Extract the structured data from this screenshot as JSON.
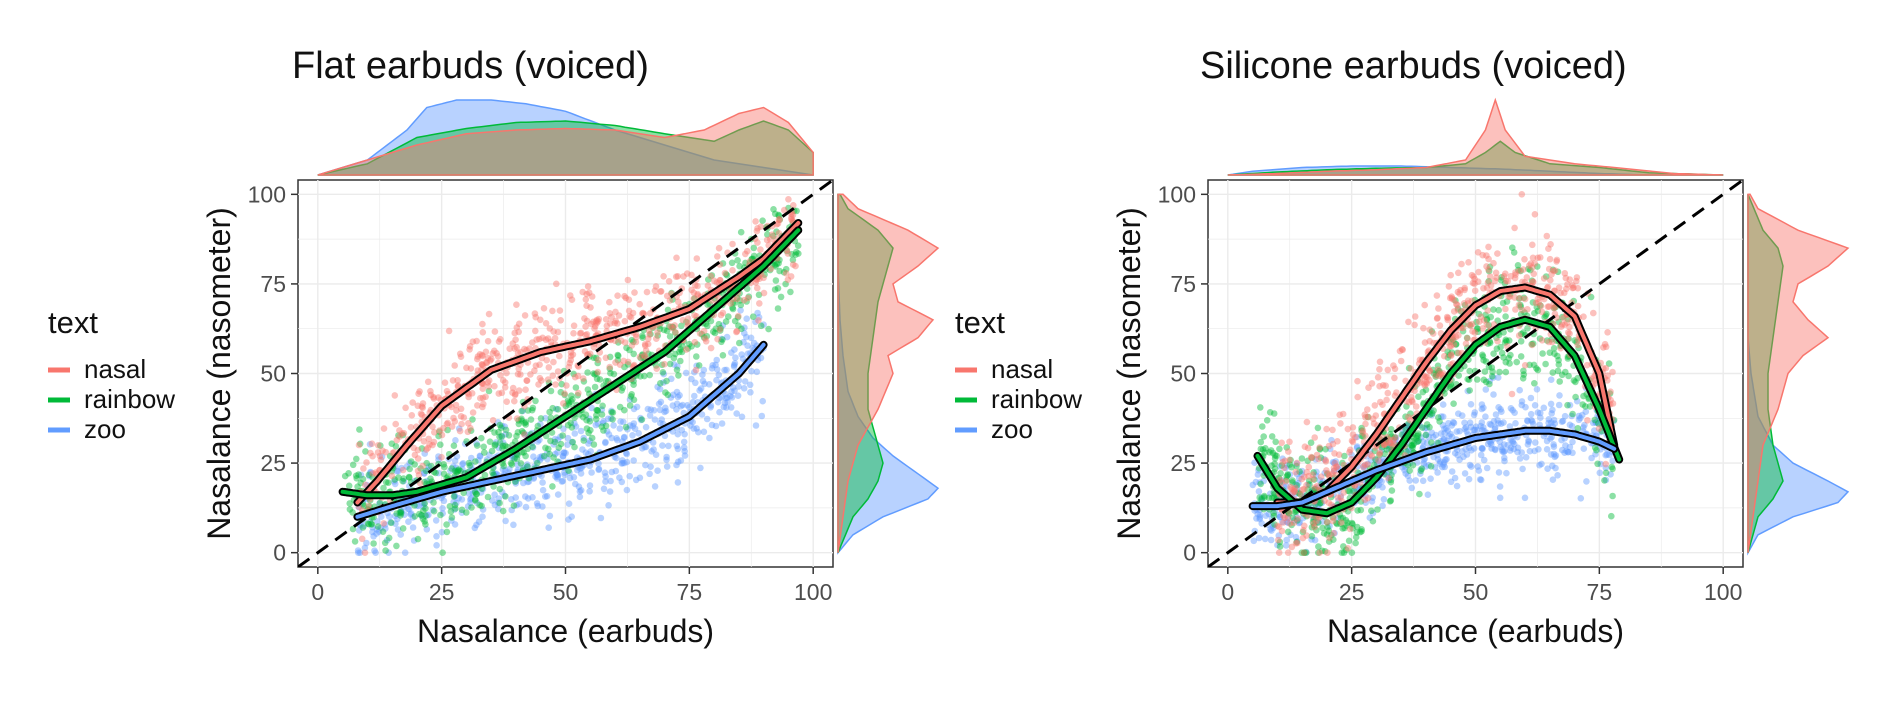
{
  "chart_data": [
    {
      "type": "scatter",
      "title": "Flat earbuds (voiced)",
      "xlabel": "Nasalance (earbuds)",
      "ylabel": "Nasalance (nasometer)",
      "xlim": [
        -4,
        104
      ],
      "ylim": [
        -4,
        104
      ],
      "xticks": [
        0,
        25,
        50,
        75,
        100
      ],
      "yticks": [
        0,
        25,
        50,
        75,
        100
      ],
      "grid": true,
      "identity_line": true,
      "legend": {
        "title": "text",
        "position": "left",
        "entries": [
          {
            "label": "nasal",
            "color": "#F8766D"
          },
          {
            "label": "rainbow",
            "color": "#00BA38"
          },
          {
            "label": "zoo",
            "color": "#619CFF"
          }
        ]
      },
      "series": [
        {
          "name": "nasal",
          "color": "#F8766D",
          "cloud": {
            "xmin": 8,
            "xmax": 97,
            "spread": 7
          },
          "trend": [
            [
              8,
              14
            ],
            [
              12,
              20
            ],
            [
              18,
              30
            ],
            [
              25,
              41
            ],
            [
              35,
              51
            ],
            [
              45,
              56
            ],
            [
              55,
              59
            ],
            [
              65,
              63
            ],
            [
              75,
              68
            ],
            [
              85,
              77
            ],
            [
              90,
              82
            ],
            [
              97,
              92
            ]
          ],
          "marginal_x": [
            [
              0,
              0
            ],
            [
              10,
              0.2
            ],
            [
              20,
              0.4
            ],
            [
              30,
              0.55
            ],
            [
              40,
              0.6
            ],
            [
              50,
              0.62
            ],
            [
              60,
              0.6
            ],
            [
              70,
              0.5
            ],
            [
              78,
              0.6
            ],
            [
              85,
              0.82
            ],
            [
              90,
              0.9
            ],
            [
              95,
              0.7
            ],
            [
              100,
              0.3
            ]
          ],
          "marginal_y": [
            [
              0,
              0
            ],
            [
              10,
              0.05
            ],
            [
              20,
              0.1
            ],
            [
              30,
              0.2
            ],
            [
              40,
              0.4
            ],
            [
              50,
              0.55
            ],
            [
              55,
              0.5
            ],
            [
              60,
              0.8
            ],
            [
              65,
              0.95
            ],
            [
              70,
              0.6
            ],
            [
              75,
              0.55
            ],
            [
              80,
              0.8
            ],
            [
              85,
              1.0
            ],
            [
              90,
              0.7
            ],
            [
              96,
              0.2
            ],
            [
              100,
              0.05
            ]
          ]
        },
        {
          "name": "rainbow",
          "color": "#00BA38",
          "cloud": {
            "xmin": 5,
            "xmax": 97,
            "spread": 7
          },
          "trend": [
            [
              5,
              17
            ],
            [
              10,
              16
            ],
            [
              15,
              16
            ],
            [
              20,
              17
            ],
            [
              30,
              21
            ],
            [
              40,
              29
            ],
            [
              50,
              38
            ],
            [
              60,
              47
            ],
            [
              70,
              56
            ],
            [
              80,
              68
            ],
            [
              90,
              80
            ],
            [
              97,
              90
            ]
          ],
          "marginal_x": [
            [
              0,
              0
            ],
            [
              10,
              0.15
            ],
            [
              20,
              0.5
            ],
            [
              30,
              0.62
            ],
            [
              40,
              0.7
            ],
            [
              50,
              0.72
            ],
            [
              60,
              0.66
            ],
            [
              70,
              0.55
            ],
            [
              80,
              0.45
            ],
            [
              85,
              0.6
            ],
            [
              90,
              0.72
            ],
            [
              95,
              0.6
            ],
            [
              100,
              0.3
            ]
          ],
          "marginal_y": [
            [
              0,
              0
            ],
            [
              10,
              0.15
            ],
            [
              15,
              0.3
            ],
            [
              20,
              0.4
            ],
            [
              25,
              0.45
            ],
            [
              30,
              0.4
            ],
            [
              40,
              0.3
            ],
            [
              50,
              0.3
            ],
            [
              60,
              0.35
            ],
            [
              70,
              0.4
            ],
            [
              80,
              0.5
            ],
            [
              85,
              0.55
            ],
            [
              90,
              0.4
            ],
            [
              96,
              0.1
            ],
            [
              100,
              0.02
            ]
          ]
        },
        {
          "name": "zoo",
          "color": "#619CFF",
          "cloud": {
            "xmin": 8,
            "xmax": 90,
            "spread": 7
          },
          "trend": [
            [
              8,
              10
            ],
            [
              15,
              13
            ],
            [
              25,
              17
            ],
            [
              35,
              20
            ],
            [
              45,
              23
            ],
            [
              55,
              26
            ],
            [
              65,
              31
            ],
            [
              75,
              38
            ],
            [
              85,
              50
            ],
            [
              90,
              58
            ]
          ],
          "marginal_x": [
            [
              0,
              0
            ],
            [
              10,
              0.2
            ],
            [
              18,
              0.6
            ],
            [
              22,
              0.9
            ],
            [
              28,
              1.0
            ],
            [
              35,
              1.0
            ],
            [
              42,
              0.95
            ],
            [
              50,
              0.85
            ],
            [
              60,
              0.6
            ],
            [
              70,
              0.4
            ],
            [
              80,
              0.2
            ],
            [
              90,
              0.1
            ],
            [
              100,
              0
            ]
          ],
          "marginal_y": [
            [
              0,
              0
            ],
            [
              5,
              0.15
            ],
            [
              10,
              0.45
            ],
            [
              15,
              0.9
            ],
            [
              18,
              1.0
            ],
            [
              22,
              0.8
            ],
            [
              27,
              0.55
            ],
            [
              32,
              0.35
            ],
            [
              38,
              0.2
            ],
            [
              45,
              0.1
            ],
            [
              55,
              0.05
            ],
            [
              65,
              0.02
            ],
            [
              80,
              0
            ]
          ]
        }
      ]
    },
    {
      "type": "scatter",
      "title": "Silicone earbuds (voiced)",
      "xlabel": "Nasalance (earbuds)",
      "ylabel": "Nasalance (nasometer)",
      "xlim": [
        -4,
        104
      ],
      "ylim": [
        -4,
        104
      ],
      "xticks": [
        0,
        25,
        50,
        75,
        100
      ],
      "yticks": [
        0,
        25,
        50,
        75,
        100
      ],
      "grid": true,
      "identity_line": true,
      "legend": {
        "title": "text",
        "position": "left",
        "entries": [
          {
            "label": "nasal",
            "color": "#F8766D"
          },
          {
            "label": "rainbow",
            "color": "#00BA38"
          },
          {
            "label": "zoo",
            "color": "#619CFF"
          }
        ]
      },
      "series": [
        {
          "name": "nasal",
          "color": "#F8766D",
          "cloud": {
            "xmin": 10,
            "xmax": 78,
            "spread": 8
          },
          "trend": [
            [
              10,
              14
            ],
            [
              15,
              14
            ],
            [
              20,
              17
            ],
            [
              25,
              24
            ],
            [
              30,
              33
            ],
            [
              35,
              43
            ],
            [
              40,
              53
            ],
            [
              45,
              62
            ],
            [
              50,
              69
            ],
            [
              55,
              73
            ],
            [
              60,
              74
            ],
            [
              65,
              72
            ],
            [
              70,
              66
            ],
            [
              75,
              50
            ],
            [
              78,
              30
            ]
          ],
          "marginal_x": [
            [
              0,
              0
            ],
            [
              10,
              0.02
            ],
            [
              20,
              0.05
            ],
            [
              30,
              0.07
            ],
            [
              40,
              0.1
            ],
            [
              48,
              0.2
            ],
            [
              52,
              0.6
            ],
            [
              54,
              1.0
            ],
            [
              56,
              0.6
            ],
            [
              60,
              0.25
            ],
            [
              70,
              0.15
            ],
            [
              78,
              0.1
            ],
            [
              90,
              0.02
            ],
            [
              100,
              0
            ]
          ],
          "marginal_y": [
            [
              0,
              0
            ],
            [
              10,
              0.05
            ],
            [
              20,
              0.1
            ],
            [
              30,
              0.15
            ],
            [
              40,
              0.3
            ],
            [
              50,
              0.4
            ],
            [
              55,
              0.55
            ],
            [
              60,
              0.8
            ],
            [
              65,
              0.6
            ],
            [
              70,
              0.45
            ],
            [
              75,
              0.5
            ],
            [
              80,
              0.8
            ],
            [
              85,
              1.0
            ],
            [
              90,
              0.5
            ],
            [
              96,
              0.1
            ],
            [
              100,
              0.02
            ]
          ]
        },
        {
          "name": "rainbow",
          "color": "#00BA38",
          "cloud": {
            "xmin": 6,
            "xmax": 78,
            "spread": 8
          },
          "trend": [
            [
              6,
              27
            ],
            [
              10,
              18
            ],
            [
              15,
              12
            ],
            [
              20,
              11
            ],
            [
              25,
              14
            ],
            [
              30,
              21
            ],
            [
              35,
              30
            ],
            [
              40,
              40
            ],
            [
              45,
              50
            ],
            [
              50,
              58
            ],
            [
              55,
              63
            ],
            [
              60,
              65
            ],
            [
              65,
              63
            ],
            [
              70,
              55
            ],
            [
              75,
              40
            ],
            [
              79,
              26
            ]
          ],
          "marginal_x": [
            [
              0,
              0
            ],
            [
              10,
              0.04
            ],
            [
              20,
              0.07
            ],
            [
              30,
              0.09
            ],
            [
              40,
              0.1
            ],
            [
              48,
              0.15
            ],
            [
              52,
              0.3
            ],
            [
              55,
              0.45
            ],
            [
              58,
              0.3
            ],
            [
              65,
              0.15
            ],
            [
              75,
              0.1
            ],
            [
              85,
              0.03
            ],
            [
              100,
              0
            ]
          ],
          "marginal_y": [
            [
              0,
              0
            ],
            [
              10,
              0.1
            ],
            [
              15,
              0.25
            ],
            [
              20,
              0.35
            ],
            [
              25,
              0.3
            ],
            [
              30,
              0.25
            ],
            [
              40,
              0.2
            ],
            [
              50,
              0.2
            ],
            [
              60,
              0.25
            ],
            [
              70,
              0.3
            ],
            [
              80,
              0.35
            ],
            [
              85,
              0.3
            ],
            [
              90,
              0.15
            ],
            [
              100,
              0
            ]
          ]
        },
        {
          "name": "zoo",
          "color": "#619CFF",
          "cloud": {
            "xmin": 5,
            "xmax": 78,
            "spread": 6
          },
          "trend": [
            [
              5,
              13
            ],
            [
              10,
              13
            ],
            [
              15,
              14
            ],
            [
              20,
              17
            ],
            [
              25,
              20
            ],
            [
              30,
              23
            ],
            [
              40,
              28
            ],
            [
              50,
              32
            ],
            [
              60,
              34
            ],
            [
              65,
              34
            ],
            [
              70,
              33
            ],
            [
              75,
              31
            ],
            [
              78,
              29
            ]
          ],
          "marginal_x": [
            [
              0,
              0
            ],
            [
              5,
              0.05
            ],
            [
              15,
              0.1
            ],
            [
              25,
              0.12
            ],
            [
              35,
              0.12
            ],
            [
              45,
              0.1
            ],
            [
              55,
              0.08
            ],
            [
              65,
              0.05
            ],
            [
              75,
              0.02
            ],
            [
              85,
              0
            ],
            [
              100,
              0
            ]
          ],
          "marginal_y": [
            [
              0,
              0
            ],
            [
              5,
              0.1
            ],
            [
              10,
              0.45
            ],
            [
              14,
              0.9
            ],
            [
              17,
              1.0
            ],
            [
              20,
              0.8
            ],
            [
              25,
              0.45
            ],
            [
              30,
              0.25
            ],
            [
              38,
              0.1
            ],
            [
              50,
              0.03
            ],
            [
              60,
              0
            ],
            [
              100,
              0
            ]
          ]
        }
      ]
    }
  ]
}
